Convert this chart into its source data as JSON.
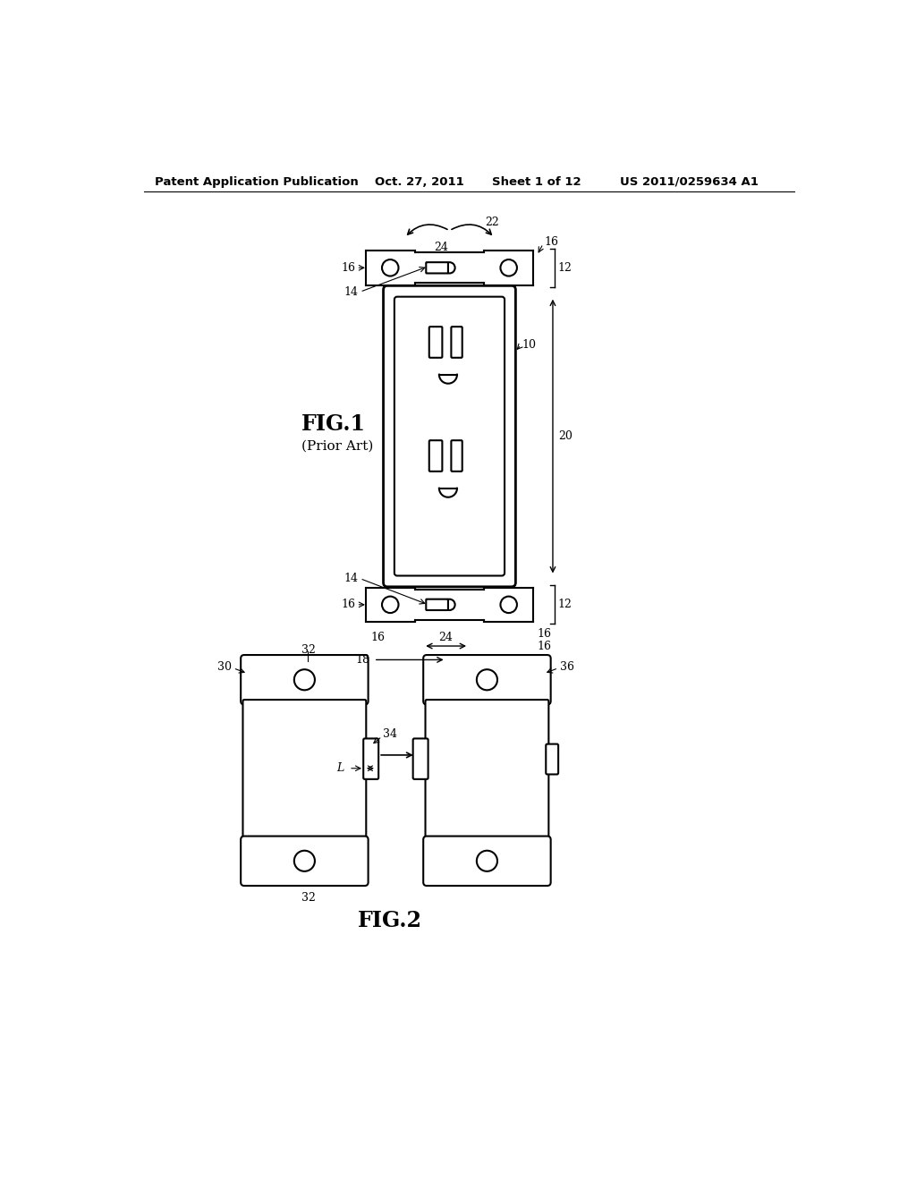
{
  "bg_color": "#ffffff",
  "line_color": "#000000",
  "header_left": "Patent Application Publication",
  "header_mid1": "Oct. 27, 2011",
  "header_mid2": "Sheet 1 of 12",
  "header_right": "US 2011/0259634 A1"
}
